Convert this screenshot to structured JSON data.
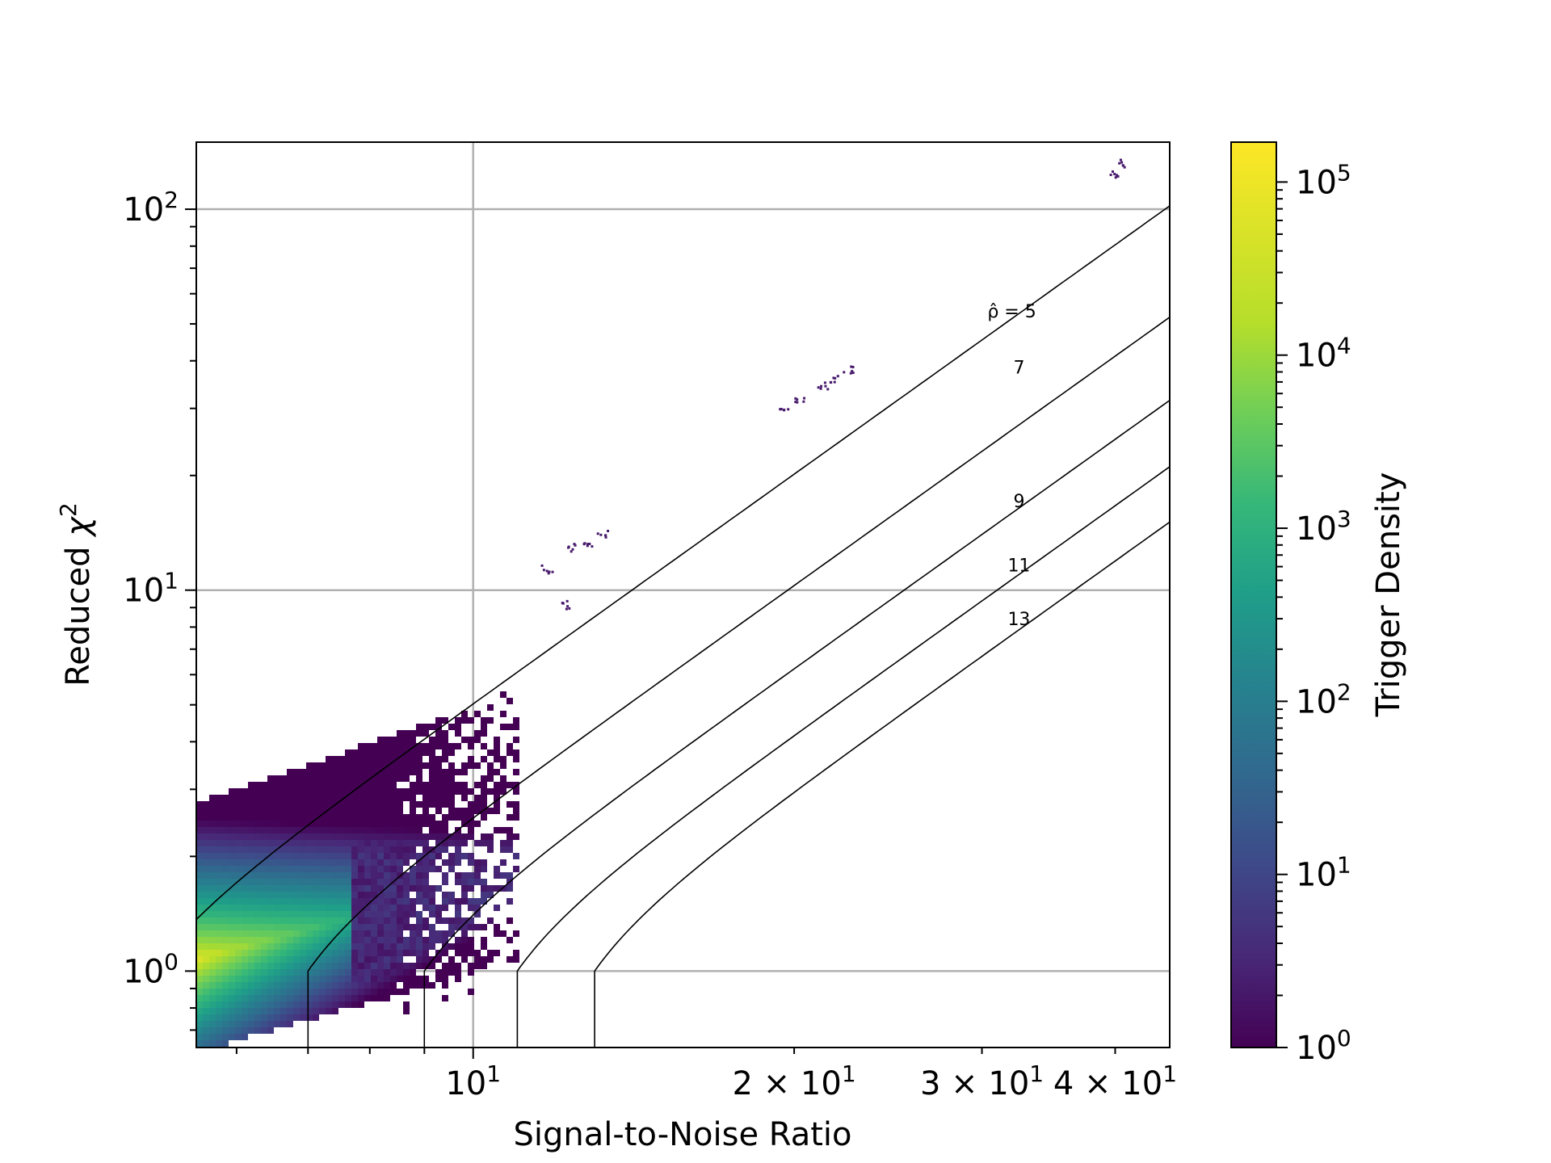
{
  "chart_data": {
    "type": "heatmap",
    "subtype": "hexbin",
    "xlabel": "Signal-to-Noise Ratio",
    "ylabel_text": "Reduced ",
    "ylabel_symbol": "χ",
    "ylabel_sup": "2",
    "x_scale": "log",
    "y_scale": "log",
    "xlim": [
      5.5,
      45
    ],
    "ylim": [
      0.63,
      150
    ],
    "grid": true,
    "x_ticks": [
      {
        "value": 10,
        "base": "10",
        "exp": "1",
        "mult": ""
      },
      {
        "value": 20,
        "base": "10",
        "exp": "1",
        "mult": "2 × "
      },
      {
        "value": 30,
        "base": "10",
        "exp": "1",
        "mult": "3 × "
      },
      {
        "value": 40,
        "base": "10",
        "exp": "1",
        "mult": "4 × "
      }
    ],
    "y_ticks": [
      {
        "value": 1,
        "base": "10",
        "exp": "0"
      },
      {
        "value": 10,
        "base": "10",
        "exp": "1"
      },
      {
        "value": 100,
        "base": "10",
        "exp": "2"
      }
    ],
    "colorbar": {
      "label": "Trigger Density",
      "scale": "log",
      "range": [
        1,
        170000
      ],
      "colormap": "viridis",
      "ticks": [
        {
          "value": 1,
          "base": "10",
          "exp": "0"
        },
        {
          "value": 10,
          "base": "10",
          "exp": "1"
        },
        {
          "value": 100,
          "base": "10",
          "exp": "2"
        },
        {
          "value": 1000,
          "base": "10",
          "exp": "3"
        },
        {
          "value": 10000,
          "base": "10",
          "exp": "4"
        },
        {
          "value": 100000,
          "base": "10",
          "exp": "5"
        }
      ]
    },
    "contours": [
      {
        "level": 5,
        "label": "ρ̂ = 5",
        "label_x": 32,
        "label_y": 52
      },
      {
        "level": 7,
        "label": "7",
        "label_x": 32.5,
        "label_y": 37
      },
      {
        "level": 9,
        "label": "9",
        "label_x": 32.5,
        "label_y": 16.5
      },
      {
        "level": 11,
        "label": "11",
        "label_x": 32.5,
        "label_y": 11.2
      },
      {
        "level": 13,
        "label": "13",
        "label_x": 32.5,
        "label_y": 8.1
      }
    ],
    "density_band": {
      "x_range": [
        5.5,
        10.9
      ],
      "upper_edge_slope_ratio": 0.52,
      "peak": {
        "x": 5.6,
        "y": 1.1
      }
    },
    "outlier_clusters": [
      {
        "x": 19.5,
        "y": 29.5
      },
      {
        "x": 20.2,
        "y": 31.5
      },
      {
        "x": 21.2,
        "y": 34.5
      },
      {
        "x": 21.8,
        "y": 36.0
      },
      {
        "x": 22.4,
        "y": 38.0
      },
      {
        "x": 39.9,
        "y": 125
      },
      {
        "x": 40.7,
        "y": 133
      },
      {
        "x": 12.4,
        "y": 13.0
      },
      {
        "x": 12.8,
        "y": 13.4
      },
      {
        "x": 13.2,
        "y": 14.2
      },
      {
        "x": 11.7,
        "y": 11.4
      },
      {
        "x": 12.2,
        "y": 9.2
      }
    ]
  }
}
